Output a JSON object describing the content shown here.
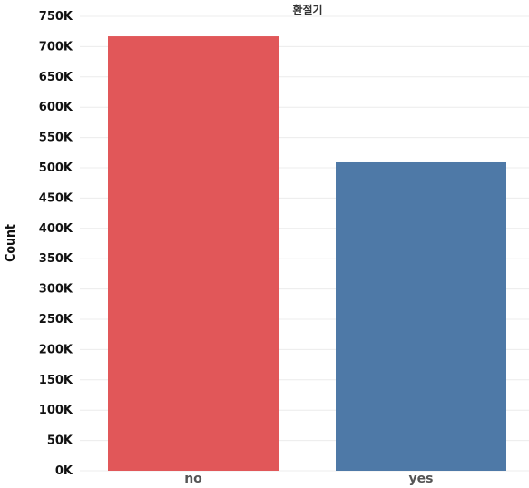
{
  "chart_data": {
    "type": "bar",
    "title": "환절기",
    "xlabel": "",
    "ylabel": "Count",
    "categories": [
      "no",
      "yes"
    ],
    "values": [
      717000,
      509000
    ],
    "colors": [
      "#e15759",
      "#4e79a7"
    ],
    "ylim": [
      0,
      750000
    ],
    "yticks": [
      0,
      50000,
      100000,
      150000,
      200000,
      250000,
      300000,
      350000,
      400000,
      450000,
      500000,
      550000,
      600000,
      650000,
      700000,
      750000
    ],
    "ytick_labels": [
      "0K",
      "50K",
      "100K",
      "150K",
      "200K",
      "250K",
      "300K",
      "350K",
      "400K",
      "450K",
      "500K",
      "550K",
      "600K",
      "650K",
      "700K",
      "750K"
    ],
    "grid": true,
    "legend": "none"
  }
}
